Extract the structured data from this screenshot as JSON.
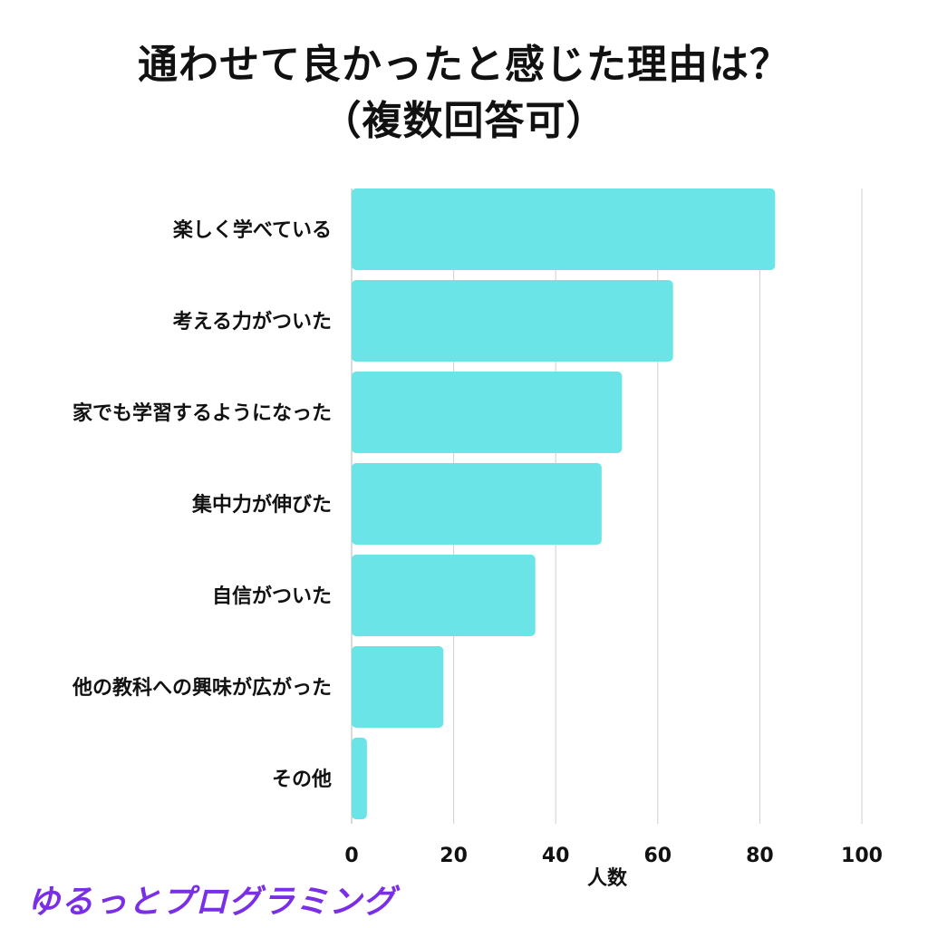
{
  "title": {
    "line1": "通わせて良かったと感じた理由は？",
    "line2": "（複数回答可）"
  },
  "brand": "ゆるっとプログラミング",
  "colors": {
    "bar": "#6be4e7",
    "grid": "#cfcfcf",
    "text": "#111111",
    "brand": "#7a2ee6"
  },
  "chart_data": {
    "type": "bar",
    "orientation": "horizontal",
    "categories": [
      "楽しく学べている",
      "考える力がついた",
      "家でも学習するようになった",
      "集中力が伸びた",
      "自信がついた",
      "他の教科への興味が広がった",
      "その他"
    ],
    "values": [
      83,
      63,
      53,
      49,
      36,
      18,
      3
    ],
    "title": "通わせて良かったと感じた理由は？（複数回答可）",
    "xlabel": "人数",
    "ylabel": "",
    "xlim": [
      0,
      100
    ],
    "xticks": [
      "0",
      "20",
      "40",
      "60",
      "80",
      "100"
    ],
    "grid": "vertical",
    "legend": "none"
  }
}
